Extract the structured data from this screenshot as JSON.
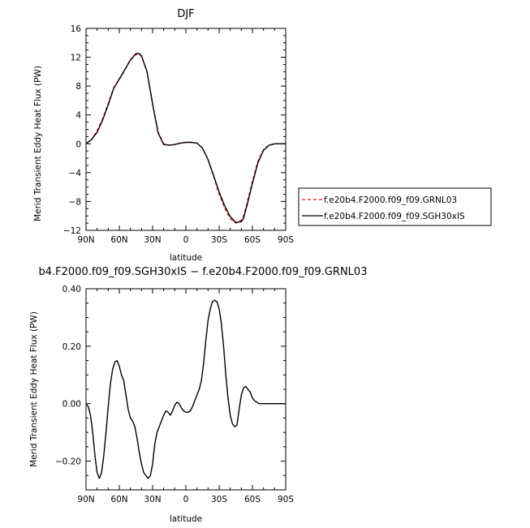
{
  "chart_data": [
    {
      "type": "line",
      "title": "DJF",
      "xlabel": "latitude",
      "ylabel": "Merid Transient Eddy Heat Flux (PW)",
      "xlim": [
        -90,
        90
      ],
      "ylim": [
        -12,
        16
      ],
      "x_ticks": [
        {
          "value": -90,
          "label": "90N"
        },
        {
          "value": -60,
          "label": "60N"
        },
        {
          "value": -30,
          "label": "30N"
        },
        {
          "value": 0,
          "label": "0"
        },
        {
          "value": 30,
          "label": "30S"
        },
        {
          "value": 60,
          "label": "60S"
        },
        {
          "value": 90,
          "label": "90S"
        }
      ],
      "y_ticks": [
        {
          "value": -12,
          "label": "−12"
        },
        {
          "value": -8,
          "label": "−8"
        },
        {
          "value": -4,
          "label": "−4"
        },
        {
          "value": 0,
          "label": "0"
        },
        {
          "value": 4,
          "label": "4"
        },
        {
          "value": 8,
          "label": "8"
        },
        {
          "value": 12,
          "label": "12"
        },
        {
          "value": 16,
          "label": "16"
        }
      ],
      "legend_position": "right",
      "series": [
        {
          "name": "f.e20b4.F2000.f09_f09.GRNL03",
          "color": "#e41a1c",
          "dash": "dashed",
          "x": [
            -90,
            -85,
            -80,
            -75,
            -70,
            -65,
            -60,
            -55,
            -50,
            -45,
            -42,
            -40,
            -35,
            -30,
            -25,
            -20,
            -15,
            -10,
            -5,
            0,
            5,
            10,
            15,
            20,
            25,
            30,
            35,
            40,
            45,
            50,
            52,
            55,
            60,
            65,
            70,
            75,
            80,
            85,
            90
          ],
          "y": [
            0,
            0.6,
            1.8,
            3.5,
            5.6,
            7.8,
            8.9,
            10.2,
            11.7,
            12.4,
            12.4,
            12.1,
            10.0,
            5.6,
            1.6,
            0.0,
            -0.2,
            -0.1,
            0.1,
            0.2,
            0.2,
            0.1,
            -0.6,
            -2.2,
            -4.5,
            -7.0,
            -8.9,
            -10.4,
            -11.0,
            -10.6,
            -10.0,
            -8.3,
            -5.2,
            -2.4,
            -0.8,
            -0.2,
            0,
            0,
            0
          ]
        },
        {
          "name": "f.e20b4.F2000.f09_f09.SGH30xIS",
          "color": "#000000",
          "dash": "solid",
          "x": [
            -90,
            -85,
            -80,
            -75,
            -70,
            -65,
            -60,
            -55,
            -50,
            -45,
            -42,
            -40,
            -35,
            -30,
            -25,
            -20,
            -15,
            -10,
            -5,
            0,
            5,
            10,
            15,
            20,
            25,
            30,
            35,
            40,
            45,
            50,
            52,
            55,
            60,
            65,
            70,
            75,
            80,
            85,
            90
          ],
          "y": [
            0,
            0.6,
            1.6,
            3.3,
            5.4,
            7.7,
            9.0,
            10.3,
            11.6,
            12.5,
            12.5,
            12.2,
            10.0,
            5.5,
            1.5,
            -0.1,
            -0.2,
            -0.1,
            0.1,
            0.2,
            0.2,
            0.1,
            -0.6,
            -2.2,
            -4.4,
            -6.7,
            -8.6,
            -10.1,
            -10.9,
            -10.8,
            -10.3,
            -8.6,
            -5.5,
            -2.6,
            -0.9,
            -0.2,
            0,
            0,
            0
          ]
        }
      ]
    },
    {
      "type": "line",
      "title": "b4.F2000.f09_f09.SGH30xIS − f.e20b4.F2000.f09_f09.GRNL03",
      "xlabel": "latitude",
      "ylabel": "Merid Transient Eddy Heat Flux (PW)",
      "xlim": [
        -90,
        90
      ],
      "ylim": [
        -0.3,
        0.4
      ],
      "x_ticks": [
        {
          "value": -90,
          "label": "90N"
        },
        {
          "value": -60,
          "label": "60N"
        },
        {
          "value": -30,
          "label": "30N"
        },
        {
          "value": 0,
          "label": "0"
        },
        {
          "value": 30,
          "label": "30S"
        },
        {
          "value": 60,
          "label": "60S"
        },
        {
          "value": 90,
          "label": "90S"
        }
      ],
      "y_ticks": [
        {
          "value": -0.2,
          "label": "−0.20"
        },
        {
          "value": 0,
          "label": "0.00"
        },
        {
          "value": 0.2,
          "label": "0.20"
        },
        {
          "value": 0.4,
          "label": "0.40"
        }
      ],
      "series": [
        {
          "color": "#000000",
          "dash": "solid",
          "x": [
            -90,
            -88,
            -86,
            -84,
            -82,
            -80,
            -78,
            -76,
            -74,
            -72,
            -70,
            -68,
            -66,
            -64,
            -62,
            -60,
            -58,
            -56,
            -54,
            -52,
            -50,
            -48,
            -46,
            -44,
            -42,
            -40,
            -38,
            -36,
            -34,
            -32,
            -30,
            -28,
            -26,
            -24,
            -22,
            -20,
            -18,
            -16,
            -14,
            -12,
            -10,
            -8,
            -6,
            -4,
            -2,
            0,
            2,
            4,
            6,
            8,
            10,
            12,
            14,
            16,
            18,
            20,
            22,
            24,
            26,
            28,
            30,
            32,
            34,
            36,
            38,
            40,
            42,
            44,
            46,
            48,
            50,
            52,
            54,
            56,
            58,
            60,
            62,
            64,
            66,
            68,
            70,
            72,
            74,
            76,
            78,
            80,
            82,
            84,
            86,
            88,
            90
          ],
          "y": [
            0,
            -0.01,
            -0.04,
            -0.1,
            -0.18,
            -0.24,
            -0.26,
            -0.24,
            -0.18,
            -0.1,
            -0.01,
            0.07,
            0.12,
            0.145,
            0.15,
            0.13,
            0.1,
            0.08,
            0.03,
            -0.02,
            -0.05,
            -0.06,
            -0.08,
            -0.12,
            -0.17,
            -0.21,
            -0.24,
            -0.25,
            -0.26,
            -0.25,
            -0.21,
            -0.14,
            -0.1,
            -0.08,
            -0.06,
            -0.04,
            -0.025,
            -0.03,
            -0.04,
            -0.025,
            -0.005,
            0.005,
            0.0,
            -0.015,
            -0.025,
            -0.03,
            -0.03,
            -0.025,
            -0.01,
            0.01,
            0.03,
            0.05,
            0.08,
            0.14,
            0.22,
            0.29,
            0.33,
            0.355,
            0.36,
            0.355,
            0.33,
            0.28,
            0.2,
            0.1,
            0.02,
            -0.04,
            -0.07,
            -0.08,
            -0.075,
            -0.02,
            0.03,
            0.055,
            0.06,
            0.05,
            0.04,
            0.02,
            0.01,
            0.005,
            0.0,
            0.0,
            0.0,
            0,
            0,
            0,
            0,
            0,
            0,
            0,
            0,
            0,
            0
          ]
        }
      ]
    }
  ]
}
